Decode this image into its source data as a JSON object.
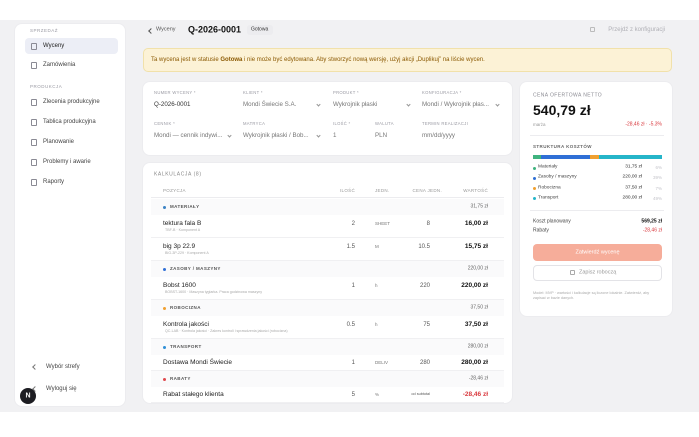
{
  "sidebar": {
    "sections": [
      {
        "label": "SPRZEDAŻ",
        "items": [
          "Wyceny",
          "Zamówienia"
        ]
      },
      {
        "label": "PRODUKCJA",
        "items": [
          "Zlecenia produkcyjne",
          "Tablica produkcyjna",
          "Planowanie",
          "Problemy i awarie",
          "Raporty"
        ]
      }
    ],
    "footer": [
      "Wybór strefy",
      "Wyloguj się"
    ],
    "avatar": "N"
  },
  "header": {
    "back": "Wyceny",
    "title": "Q-2026-0001",
    "status": "Gotowa",
    "action": "Przejdź z konfiguracji"
  },
  "banner": {
    "before": "Ta wycena jest w statusie ",
    "status": "Gotowa",
    "after": " i nie może być edytowana. Aby stworzyć nową wersję, użyj akcji „Duplikuj” na liście wycen."
  },
  "form": {
    "row1": [
      {
        "label": "NUMER WYCENY *",
        "value": "Q-2026-0001"
      },
      {
        "label": "KLIENT *",
        "value": "Mondi Świecie S.A."
      },
      {
        "label": "PRODUKT *",
        "value": "Wykrojnik płaski"
      },
      {
        "label": "KONFIGURACJA *",
        "value": "Mondi / Wykrojnik płas..."
      }
    ],
    "row2": [
      {
        "label": "CENNIK *",
        "value": "Mondi — cennik indywi..."
      },
      {
        "label": "MATRYCA",
        "value": "Wykrojnik płaski / Bob..."
      },
      {
        "label": "ILOŚĆ *",
        "value": "1"
      },
      {
        "label": "WALUTA",
        "value": "PLN"
      },
      {
        "label": "TERMIN REALIZACJI",
        "value": "mm/dd/yyyy"
      }
    ]
  },
  "calculation": {
    "title": "KALKULACJA (8)",
    "columns": [
      "POZYCJA",
      "ILOŚĆ",
      "JEDN.",
      "CENA JEDN.",
      "WARTOŚĆ"
    ],
    "rows": [
      {
        "group": "MATERIAŁY",
        "total": "31,75 zł",
        "color": "#3b82c4"
      },
      {
        "name": "tektura fala B",
        "detail": "TBF-B · Komponent A",
        "qty": "2",
        "unit": "SHEET",
        "price": "8",
        "value": "16,00 zł"
      },
      {
        "name": "big 3p 22.9",
        "detail": "BIG-3P-229 · Komponent A",
        "qty": "1.5",
        "unit": "M",
        "price": "10.5",
        "value": "15,75 zł"
      },
      {
        "group": "ZASOBY / MASZYNY",
        "total": "220,00 zł",
        "color": "#2f6fd6"
      },
      {
        "name": "Bobst 1600",
        "detail": "BOBST-1600 · Maszyna tyglarka. Praca godzinowa maszyny",
        "qty": "1",
        "unit": "h",
        "price": "220",
        "value": "220,00 zł"
      },
      {
        "group": "ROBOCIZNA",
        "total": "37,50 zł",
        "color": "#f0a030"
      },
      {
        "name": "Kontrola jakości",
        "detail": "QC-LAB · Kontrola jakości · Zakres kontroli i sprawdzenia jakości (robocizna)",
        "qty": "0.5",
        "unit": "h",
        "price": "75",
        "value": "37,50 zł"
      },
      {
        "group": "TRANSPORT",
        "total": "280,00 zł",
        "color": "#2f8fd6"
      },
      {
        "name": "Dostawa Mondi Świecie",
        "detail": "",
        "qty": "1",
        "unit": "DELIV",
        "price": "280",
        "value": "280,00 zł"
      },
      {
        "group": "RABATY",
        "total": "-28,46 zł",
        "color": "#e0474c"
      },
      {
        "name": "Rabat stałego klienta",
        "detail": "",
        "qty": "5",
        "unit": "%",
        "price": "od subtotal",
        "value": "-28,46 zł"
      }
    ]
  },
  "summary": {
    "label": "CENA OFERTOWA NETTO",
    "price": "540,79 zł",
    "margin_label": "marża",
    "margin_value": "-28,46 zł · -5.3%",
    "structure_title": "STRUKTURA KOSZTÓW",
    "structure": [
      {
        "name": "Materiały",
        "amount": "31,75 zł",
        "share": "6%",
        "color": "#3fb37f"
      },
      {
        "name": "Zasoby / maszyny",
        "amount": "220,00 zł",
        "share": "39%",
        "color": "#2f6fd6"
      },
      {
        "name": "Robocizna",
        "amount": "37,50 zł",
        "share": "7%",
        "color": "#f0a030"
      },
      {
        "name": "Transport",
        "amount": "280,00 zł",
        "share": "49%",
        "color": "#25b5c9"
      }
    ],
    "planned_label": "Koszt planowany",
    "planned_value": "569,25 zł",
    "discount_label": "Rabaty",
    "discount_value": "-28,46 zł",
    "primary_button": "Zatwierdź wycenę",
    "secondary_button": "Zapisz roboczą",
    "note": "Model: MVP · wartości i kalkulacje są liczone lokalnie. Zatwierdź, aby zapisać w bazie danych."
  }
}
